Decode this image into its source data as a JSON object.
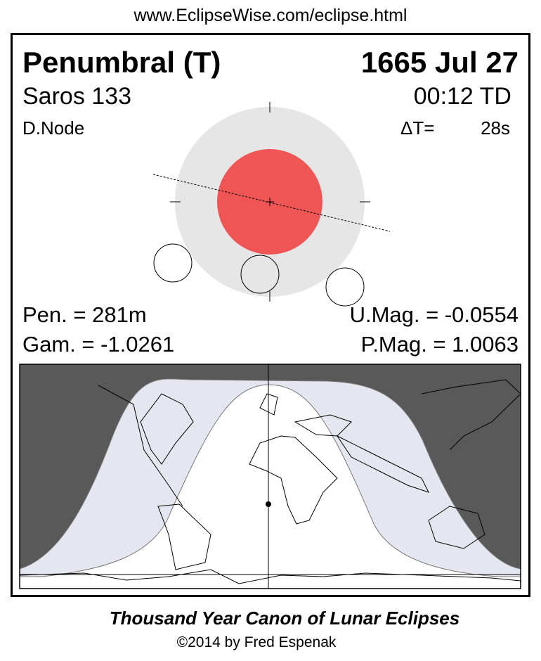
{
  "url": "www.EclipseWise.com/eclipse.html",
  "title": "Penumbral (T)",
  "date": "1665 Jul 27",
  "saros": "Saros 133",
  "time": "00:12 TD",
  "node": "D.Node",
  "delta_t_label": "ΔT=",
  "delta_t_value": "28s",
  "pen": "Pen. = 281m",
  "gam": "Gam. = -1.0261",
  "umag": "U.Mag. = -0.0554",
  "pmag": "P.Mag. = 1.0063",
  "footer_title": "Thousand Year Canon of Lunar Eclipses",
  "copyright": "©2014 by Fred Espenak",
  "colors": {
    "umbra": "#ef5555",
    "penumbra": "#e6e6e6",
    "night": "#595959",
    "penumbral_visibility": "#e6e6f0"
  }
}
